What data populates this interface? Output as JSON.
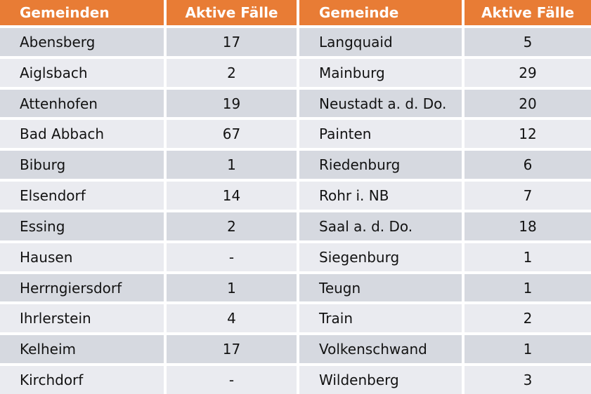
{
  "colors": {
    "header_bg": "#e87c35",
    "header_text": "#ffffff",
    "row_dark": "#d6d9e0",
    "row_light": "#eaebf0",
    "body_text": "#121212",
    "gap": "#ffffff"
  },
  "chart_data": {
    "type": "table",
    "columns": [
      "Gemeinden",
      "Aktive Fälle",
      "Gemeinde",
      "Aktive Fälle"
    ],
    "rows": [
      [
        "Abensberg",
        "17",
        "Langquaid",
        "5"
      ],
      [
        "Aiglsbach",
        "2",
        "Mainburg",
        "29"
      ],
      [
        "Attenhofen",
        "19",
        "Neustadt a. d. Do.",
        "20"
      ],
      [
        "Bad Abbach",
        "67",
        "Painten",
        "12"
      ],
      [
        "Biburg",
        "1",
        "Riedenburg",
        "6"
      ],
      [
        "Elsendorf",
        "14",
        "Rohr i. NB",
        "7"
      ],
      [
        "Essing",
        "2",
        "Saal a. d. Do.",
        "18"
      ],
      [
        "Hausen",
        "-",
        "Siegenburg",
        "1"
      ],
      [
        "Herrngiersdorf",
        "1",
        "Teugn",
        "1"
      ],
      [
        "Ihrlerstein",
        "4",
        "Train",
        "2"
      ],
      [
        "Kelheim",
        "17",
        "Volkenschwand",
        "1"
      ],
      [
        "Kirchdorf",
        "-",
        "Wildenberg",
        "3"
      ]
    ]
  }
}
